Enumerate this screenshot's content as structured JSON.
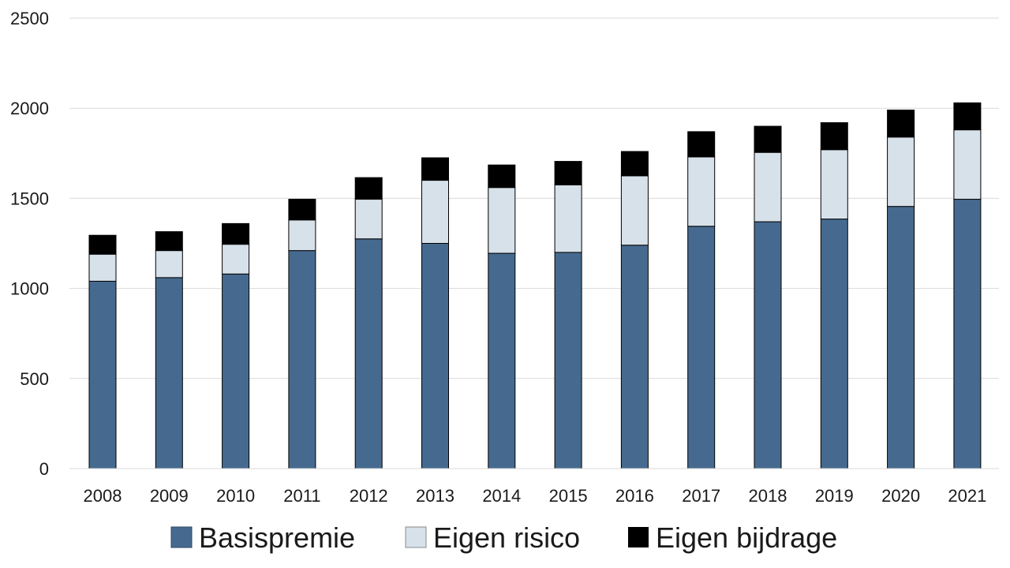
{
  "chart_data": {
    "type": "bar",
    "stacked": true,
    "title": "",
    "xlabel": "",
    "ylabel": "",
    "categories": [
      "2008",
      "2009",
      "2010",
      "2011",
      "2012",
      "2013",
      "2014",
      "2015",
      "2016",
      "2017",
      "2018",
      "2019",
      "2020",
      "2021"
    ],
    "series": [
      {
        "name": "Basispremie",
        "color": "#466A8F",
        "values": [
          1040,
          1060,
          1080,
          1210,
          1275,
          1250,
          1195,
          1200,
          1240,
          1345,
          1370,
          1385,
          1455,
          1495
        ]
      },
      {
        "name": "Eigen risico",
        "color": "#D7E1EA",
        "values": [
          150,
          150,
          165,
          170,
          220,
          350,
          365,
          375,
          385,
          385,
          385,
          385,
          385,
          385
        ]
      },
      {
        "name": "Eigen bijdrage",
        "color": "#000000",
        "values": [
          105,
          105,
          115,
          115,
          120,
          125,
          125,
          130,
          135,
          140,
          145,
          150,
          150,
          150
        ]
      }
    ],
    "ylim": [
      0,
      2500
    ],
    "yticks": [
      0,
      500,
      1000,
      1500,
      2000,
      2500
    ],
    "grid": true,
    "legend_position": "bottom"
  }
}
